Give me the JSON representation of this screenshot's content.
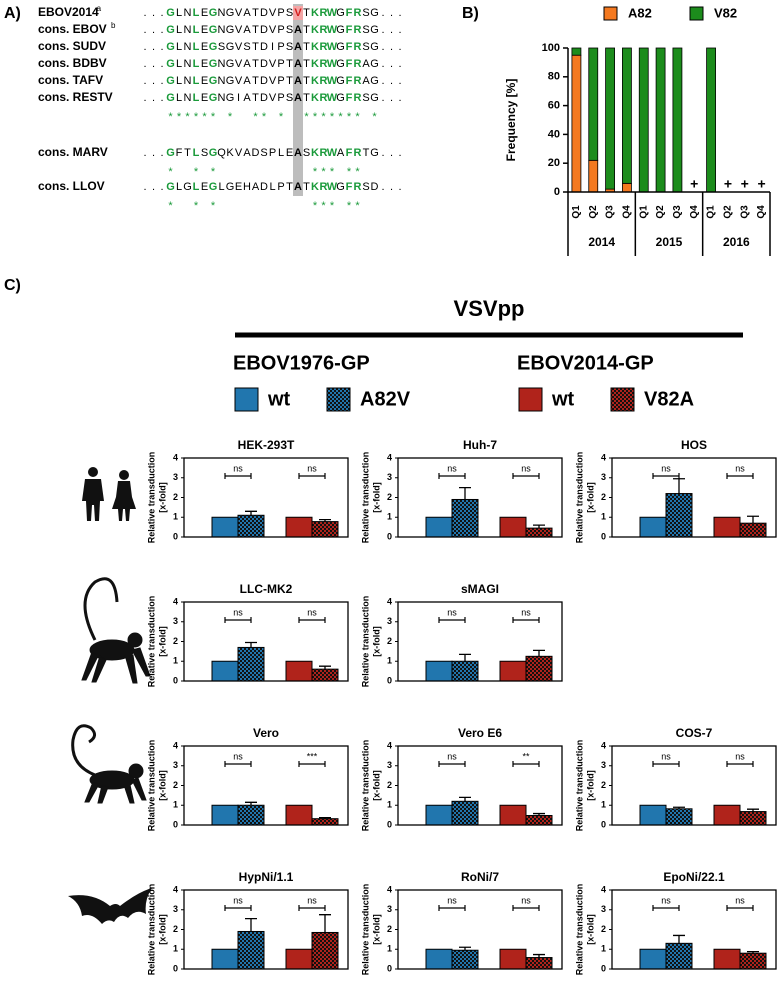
{
  "panel_labels": [
    "A)",
    "B)",
    "C)"
  ],
  "alignment": {
    "blocks": [
      {
        "rows": [
          {
            "name": "EBOV2014",
            "sup": "a",
            "sequence": "...GLNLEGNGVATDVPSVTKRWGFRSG..."
          },
          {
            "name": "cons. EBOV",
            "sup": "b",
            "sequence": "...GLNLEGNGVATDVPSATKRWGFRSG..."
          },
          {
            "name": "cons. SUDV",
            "sequence": "...GLNLEGSGVSTDIPSATKRWGFRSG..."
          },
          {
            "name": "cons. BDBV",
            "sequence": "...GLNLEGNGVATDVPTATKRWGFRAG..."
          },
          {
            "name": "cons. TAFV",
            "sequence": "...GLNLEGNGVATDVPTATKRWGFRAG..."
          },
          {
            "name": "cons. RESTV",
            "sequence": "...GLNLEGNGIATDVPSATKRWGFRSG..."
          }
        ],
        "stars": "****** *  ** *  ******* *"
      },
      {
        "rows": [
          {
            "name": "cons. MARV",
            "sequence": "...GFTLSGQKVADSPLEASKRWAFRTG..."
          }
        ],
        "stars": "*  * *           *** **"
      },
      {
        "rows": [
          {
            "name": "cons. LLOV",
            "sequence": "...GLGLEGLGEHADLPTATKRWGFRSD..."
          }
        ],
        "stars": "*  * *           *** **"
      }
    ]
  },
  "panel_c": {
    "title": "VSVpp",
    "groups": [
      {
        "name": "EBOV1976-GP",
        "series": [
          {
            "name": "wt",
            "color": "#2176ae",
            "pattern": "solid"
          },
          {
            "name": "A82V",
            "color": "#2176ae",
            "pattern": "checkered"
          }
        ]
      },
      {
        "name": "EBOV2014-GP",
        "series": [
          {
            "name": "wt",
            "color": "#b0231b",
            "pattern": "solid"
          },
          {
            "name": "V82A",
            "color": "#b0231b",
            "pattern": "checkered"
          }
        ]
      }
    ]
  },
  "chart_data": [
    {
      "type": "stacked-bar",
      "ylabel": "Frequency [%]",
      "categories": [
        "Q1",
        "Q2",
        "Q3",
        "Q4",
        "Q1",
        "Q2",
        "Q3",
        "Q4",
        "Q1",
        "Q2",
        "Q3",
        "Q4"
      ],
      "groups": [
        "2014",
        "2015",
        "2016"
      ],
      "series": [
        {
          "name": "A82",
          "color": "#f47920",
          "values": [
            95,
            22,
            2,
            6,
            0,
            0,
            0,
            null,
            0,
            null,
            null,
            null
          ]
        },
        {
          "name": "V82",
          "color": "#1c8c1c",
          "values": [
            5,
            78,
            98,
            94,
            100,
            100,
            100,
            null,
            100,
            null,
            null,
            null
          ]
        }
      ],
      "ylim": [
        0,
        100
      ],
      "yticks": [
        0,
        20,
        40,
        60,
        80,
        100
      ],
      "no_data_label": "+"
    },
    {
      "type": "bar",
      "title": "HEK-293T",
      "ylabel": [
        "Relative transduction",
        "[x-fold]"
      ],
      "values": [
        1,
        1.1,
        1,
        0.78
      ],
      "errors": [
        null,
        0.2,
        null,
        0.1
      ],
      "significance": [
        "ns",
        "ns"
      ],
      "ylim": [
        0,
        4
      ],
      "yticks": [
        0,
        1,
        2,
        3,
        4
      ]
    },
    {
      "type": "bar",
      "title": "Huh-7",
      "ylabel": [
        "Relative transduction",
        "[x-fold]"
      ],
      "values": [
        1,
        1.9,
        1,
        0.45
      ],
      "errors": [
        null,
        0.6,
        null,
        0.15
      ],
      "significance": [
        "ns",
        "ns"
      ],
      "ylim": [
        0,
        4
      ],
      "yticks": [
        0,
        1,
        2,
        3,
        4
      ]
    },
    {
      "type": "bar",
      "title": "HOS",
      "ylabel": [
        "Relative transduction",
        "[x-fold]"
      ],
      "values": [
        1,
        2.2,
        1,
        0.7
      ],
      "errors": [
        null,
        0.75,
        null,
        0.35
      ],
      "significance": [
        "ns",
        "ns"
      ],
      "ylim": [
        0,
        4
      ],
      "yticks": [
        0,
        1,
        2,
        3,
        4
      ]
    },
    {
      "type": "bar",
      "title": "LLC-MK2",
      "ylabel": [
        "Relative transduction",
        "[x-fold]"
      ],
      "values": [
        1,
        1.7,
        1,
        0.6
      ],
      "errors": [
        null,
        0.25,
        null,
        0.15
      ],
      "significance": [
        "ns",
        "ns"
      ],
      "ylim": [
        0,
        4
      ],
      "yticks": [
        0,
        1,
        2,
        3,
        4
      ]
    },
    {
      "type": "bar",
      "title": "sMAGI",
      "ylabel": [
        "Relative transduction",
        "[x-fold]"
      ],
      "values": [
        1,
        1,
        1,
        1.25
      ],
      "errors": [
        null,
        0.35,
        null,
        0.3
      ],
      "significance": [
        "ns",
        "ns"
      ],
      "ylim": [
        0,
        4
      ],
      "yticks": [
        0,
        1,
        2,
        3,
        4
      ]
    },
    {
      "type": "bar",
      "title": "Vero",
      "ylabel": [
        "Relative transduction",
        "[x-fold]"
      ],
      "values": [
        1,
        1,
        1,
        0.32
      ],
      "errors": [
        null,
        0.15,
        null,
        0.05
      ],
      "significance": [
        "ns",
        "***"
      ],
      "ylim": [
        0,
        4
      ],
      "yticks": [
        0,
        1,
        2,
        3,
        4
      ]
    },
    {
      "type": "bar",
      "title": "Vero E6",
      "ylabel": [
        "Relative transduction",
        "[x-fold]"
      ],
      "values": [
        1,
        1.2,
        1,
        0.48
      ],
      "errors": [
        null,
        0.2,
        null,
        0.1
      ],
      "significance": [
        "ns",
        "**"
      ],
      "ylim": [
        0,
        4
      ],
      "yticks": [
        0,
        1,
        2,
        3,
        4
      ]
    },
    {
      "type": "bar",
      "title": "COS-7",
      "ylabel": [
        "Relative transduction",
        "[x-fold]"
      ],
      "values": [
        1,
        0.82,
        1,
        0.68
      ],
      "errors": [
        null,
        0.08,
        null,
        0.12
      ],
      "significance": [
        "ns",
        "ns"
      ],
      "ylim": [
        0,
        4
      ],
      "yticks": [
        0,
        1,
        2,
        3,
        4
      ]
    },
    {
      "type": "bar",
      "title": "HypNi/1.1",
      "ylabel": [
        "Relative transduction",
        "[x-fold]"
      ],
      "values": [
        1,
        1.9,
        1,
        1.85
      ],
      "errors": [
        null,
        0.65,
        null,
        0.9
      ],
      "significance": [
        "ns",
        "ns"
      ],
      "ylim": [
        0,
        4
      ],
      "yticks": [
        0,
        1,
        2,
        3,
        4
      ]
    },
    {
      "type": "bar",
      "title": "RoNi/7",
      "ylabel": [
        "Relative transduction",
        "[x-fold]"
      ],
      "values": [
        1,
        0.95,
        1,
        0.58
      ],
      "errors": [
        null,
        0.15,
        null,
        0.15
      ],
      "significance": [
        "ns",
        "ns"
      ],
      "ylim": [
        0,
        4
      ],
      "yticks": [
        0,
        1,
        2,
        3,
        4
      ]
    },
    {
      "type": "bar",
      "title": "EpoNi/22.1",
      "ylabel": [
        "Relative transduction",
        "[x-fold]"
      ],
      "values": [
        1,
        1.3,
        1,
        0.8
      ],
      "errors": [
        null,
        0.4,
        null,
        0.08
      ],
      "significance": [
        "ns",
        "ns"
      ],
      "ylim": [
        0,
        4
      ],
      "yticks": [
        0,
        1,
        2,
        3,
        4
      ]
    }
  ]
}
